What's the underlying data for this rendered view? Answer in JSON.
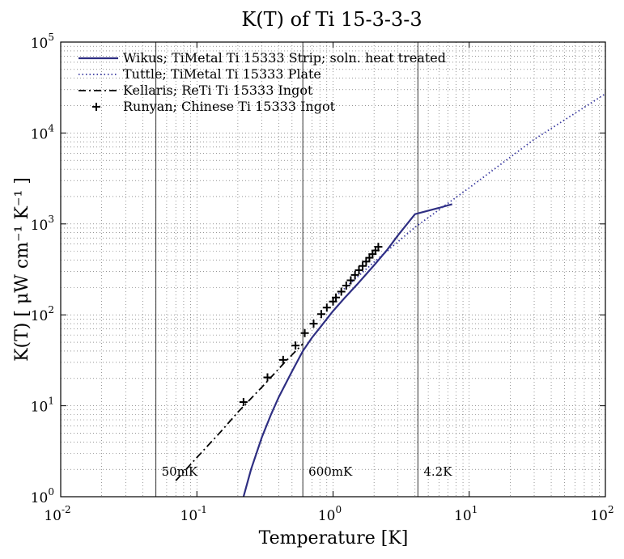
{
  "chart_data": {
    "type": "line",
    "title": "K(T) of Ti 15-3-3-3",
    "xlabel": "Temperature [K]",
    "ylabel": "K(T) [ μW cm⁻¹ K⁻¹ ]",
    "xscale": "log",
    "yscale": "log",
    "xlim": [
      0.01,
      100
    ],
    "ylim": [
      1,
      100000
    ],
    "grid": true,
    "legend_position": "top-left",
    "x_ticks": [
      {
        "base": "10",
        "exp": "-2"
      },
      {
        "base": "10",
        "exp": "-1"
      },
      {
        "base": "10",
        "exp": "0"
      },
      {
        "base": "10",
        "exp": "1"
      },
      {
        "base": "10",
        "exp": "2"
      }
    ],
    "y_ticks": [
      {
        "base": "10",
        "exp": "0"
      },
      {
        "base": "10",
        "exp": "1"
      },
      {
        "base": "10",
        "exp": "2"
      },
      {
        "base": "10",
        "exp": "3"
      },
      {
        "base": "10",
        "exp": "4"
      },
      {
        "base": "10",
        "exp": "5"
      }
    ],
    "reference_lines": [
      {
        "x": 0.05,
        "label": "50mK"
      },
      {
        "x": 0.6,
        "label": "600mK"
      },
      {
        "x": 4.2,
        "label": "4.2K"
      }
    ],
    "series": [
      {
        "name": "Wikus; TiMetal Ti 15333 Strip; soln. heat treated",
        "style": "solid",
        "color": "#2e2e82",
        "x": [
          0.22,
          0.25,
          0.3,
          0.35,
          0.4,
          0.5,
          0.6,
          0.7,
          0.8,
          1.0,
          1.2,
          1.5,
          2.0,
          2.5,
          3.0,
          4.0,
          5.0,
          6.0,
          7.5
        ],
        "y": [
          1.0,
          2.0,
          4.5,
          8.0,
          12.5,
          24.0,
          40.0,
          56.0,
          72.0,
          110.0,
          150.0,
          215.0,
          350.0,
          520.0,
          750.0,
          1280.0,
          1400.0,
          1500.0,
          1650.0
        ]
      },
      {
        "name": "Tuttle; TiMetal Ti 15333 Plate",
        "style": "dotted",
        "color": "#3a3aa0",
        "x": [
          1.0,
          2.0,
          4.0,
          10.0,
          30.0,
          100.0
        ],
        "y": [
          150.0,
          380.0,
          920.0,
          2500.0,
          8500.0,
          27000.0
        ]
      },
      {
        "name": "Kellaris; ReTi Ti 15333 Ingot",
        "style": "dashdot",
        "color": "#000000",
        "x": [
          0.07,
          0.1,
          0.15,
          0.2,
          0.3,
          0.45,
          0.6
        ],
        "y": [
          1.5,
          2.7,
          5.2,
          8.5,
          16.0,
          31.0,
          48.0
        ]
      },
      {
        "name": "Runyan; Chinese Ti 15333 Ingot",
        "style": "marker-plus",
        "color": "#000000",
        "x": [
          0.22,
          0.33,
          0.43,
          0.53,
          0.62,
          0.72,
          0.82,
          0.9,
          1.0,
          1.05,
          1.15,
          1.25,
          1.35,
          1.45,
          1.55,
          1.65,
          1.75,
          1.85,
          1.95,
          2.05,
          2.15
        ],
        "y": [
          11.0,
          20.5,
          32.0,
          46.0,
          63.0,
          80.0,
          102.0,
          120.0,
          140.0,
          155.0,
          180.0,
          210.0,
          240.0,
          275.0,
          310.0,
          345.0,
          385.0,
          425.0,
          465.0,
          510.0,
          560.0
        ]
      }
    ]
  }
}
